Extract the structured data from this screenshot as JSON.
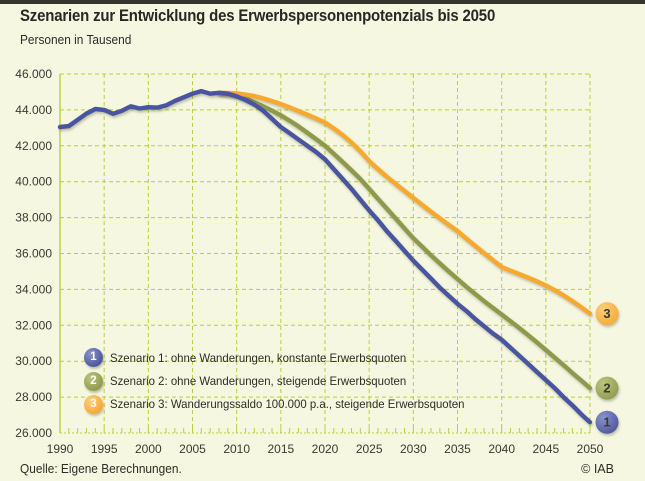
{
  "header": {
    "title": "Szenarien zur Entwicklung des Erwerbspersonenpotenzials bis 2050",
    "subtitle": "Personen in Tausend"
  },
  "footer": {
    "source": "Quelle: Eigene Berechnungen.",
    "credit": "© IAB"
  },
  "colors": {
    "background": "#f5f7e0",
    "grid": "#b9cf3d",
    "top_bar": "#35352c",
    "text": "#2d2d28"
  },
  "chart_data": {
    "type": "line",
    "title": "Szenarien zur Entwicklung des Erwerbspersonenpotenzials bis 2050",
    "ylabel": "Personen in Tausend",
    "xlabel": "",
    "x_range": [
      1990,
      2050
    ],
    "y_range": [
      26000,
      46000
    ],
    "grid": true,
    "legend_position": "inside-bottom-left",
    "x_ticks": [
      1990,
      1995,
      2000,
      2005,
      2010,
      2015,
      2020,
      2025,
      2030,
      2035,
      2040,
      2045,
      2050
    ],
    "y_ticks": [
      {
        "value": 26000,
        "label": "26.000"
      },
      {
        "value": 28000,
        "label": "28.000"
      },
      {
        "value": 30000,
        "label": "30.000"
      },
      {
        "value": 32000,
        "label": "32.000"
      },
      {
        "value": 34000,
        "label": "34.000"
      },
      {
        "value": 36000,
        "label": "36.000"
      },
      {
        "value": 38000,
        "label": "38.000"
      },
      {
        "value": 40000,
        "label": "40.000"
      },
      {
        "value": 42000,
        "label": "42.000"
      },
      {
        "value": 44000,
        "label": "44.000"
      },
      {
        "value": 46000,
        "label": "46.000"
      }
    ],
    "series": [
      {
        "marker": "1",
        "name": "Szenario 1: ohne Wanderungen, konstante Erwerbsquoten",
        "color": "#4a549e",
        "color_light": "#8a93c8",
        "end_value_2050": 26600,
        "points": [
          [
            1990,
            43050
          ],
          [
            1991,
            43100
          ],
          [
            1992,
            43450
          ],
          [
            1993,
            43800
          ],
          [
            1994,
            44050
          ],
          [
            1995,
            44000
          ],
          [
            1996,
            43780
          ],
          [
            1997,
            43950
          ],
          [
            1998,
            44200
          ],
          [
            1999,
            44080
          ],
          [
            2000,
            44150
          ],
          [
            2001,
            44130
          ],
          [
            2002,
            44250
          ],
          [
            2003,
            44500
          ],
          [
            2004,
            44700
          ],
          [
            2005,
            44900
          ],
          [
            2006,
            45050
          ],
          [
            2007,
            44900
          ],
          [
            2008,
            44950
          ],
          [
            2009,
            44900
          ],
          [
            2010,
            44750
          ],
          [
            2011,
            44550
          ],
          [
            2012,
            44300
          ],
          [
            2013,
            43950
          ],
          [
            2014,
            43500
          ],
          [
            2015,
            43050
          ],
          [
            2016,
            42700
          ],
          [
            2017,
            42350
          ],
          [
            2018,
            42000
          ],
          [
            2019,
            41650
          ],
          [
            2020,
            41250
          ],
          [
            2021,
            40700
          ],
          [
            2022,
            40150
          ],
          [
            2023,
            39600
          ],
          [
            2024,
            39000
          ],
          [
            2025,
            38400
          ],
          [
            2026,
            37850
          ],
          [
            2027,
            37250
          ],
          [
            2028,
            36700
          ],
          [
            2029,
            36150
          ],
          [
            2030,
            35600
          ],
          [
            2031,
            35100
          ],
          [
            2032,
            34600
          ],
          [
            2033,
            34100
          ],
          [
            2034,
            33650
          ],
          [
            2035,
            33200
          ],
          [
            2036,
            32800
          ],
          [
            2037,
            32350
          ],
          [
            2038,
            31950
          ],
          [
            2039,
            31550
          ],
          [
            2040,
            31200
          ],
          [
            2041,
            30750
          ],
          [
            2042,
            30300
          ],
          [
            2043,
            29850
          ],
          [
            2044,
            29400
          ],
          [
            2045,
            28950
          ],
          [
            2046,
            28500
          ],
          [
            2047,
            28000
          ],
          [
            2048,
            27550
          ],
          [
            2049,
            27050
          ],
          [
            2050,
            26600
          ]
        ]
      },
      {
        "marker": "2",
        "name": "Szenario 2: ohne Wanderungen, steigende Erwerbsquoten",
        "color": "#8e9a4c",
        "color_light": "#bcc47e",
        "end_value_2050": 28500,
        "points": [
          [
            2008,
            44950
          ],
          [
            2009,
            44900
          ],
          [
            2010,
            44820
          ],
          [
            2011,
            44650
          ],
          [
            2012,
            44430
          ],
          [
            2013,
            44200
          ],
          [
            2014,
            43960
          ],
          [
            2015,
            43700
          ],
          [
            2016,
            43400
          ],
          [
            2017,
            43080
          ],
          [
            2018,
            42730
          ],
          [
            2019,
            42370
          ],
          [
            2020,
            42000
          ],
          [
            2021,
            41560
          ],
          [
            2022,
            41100
          ],
          [
            2023,
            40630
          ],
          [
            2024,
            40150
          ],
          [
            2025,
            39600
          ],
          [
            2026,
            39050
          ],
          [
            2027,
            38500
          ],
          [
            2028,
            37950
          ],
          [
            2029,
            37400
          ],
          [
            2030,
            36850
          ],
          [
            2031,
            36380
          ],
          [
            2032,
            35900
          ],
          [
            2033,
            35450
          ],
          [
            2034,
            35000
          ],
          [
            2035,
            34580
          ],
          [
            2036,
            34150
          ],
          [
            2037,
            33750
          ],
          [
            2038,
            33350
          ],
          [
            2039,
            32980
          ],
          [
            2040,
            32600
          ],
          [
            2041,
            32230
          ],
          [
            2042,
            31850
          ],
          [
            2043,
            31450
          ],
          [
            2044,
            31050
          ],
          [
            2045,
            30630
          ],
          [
            2046,
            30200
          ],
          [
            2047,
            29780
          ],
          [
            2048,
            29350
          ],
          [
            2049,
            28930
          ],
          [
            2050,
            28500
          ]
        ]
      },
      {
        "marker": "3",
        "name": "Szenario 3: Wanderungssaldo 100.000 p.a., steigende Erwerbsquoten",
        "color": "#f7a82d",
        "color_light": "#fbcf7f",
        "end_value_2050": 32650,
        "points": [
          [
            2008,
            44950
          ],
          [
            2009,
            44940
          ],
          [
            2010,
            44920
          ],
          [
            2011,
            44860
          ],
          [
            2012,
            44770
          ],
          [
            2013,
            44640
          ],
          [
            2014,
            44490
          ],
          [
            2015,
            44330
          ],
          [
            2016,
            44140
          ],
          [
            2017,
            43940
          ],
          [
            2018,
            43730
          ],
          [
            2019,
            43520
          ],
          [
            2020,
            43300
          ],
          [
            2021,
            42970
          ],
          [
            2022,
            42600
          ],
          [
            2023,
            42180
          ],
          [
            2024,
            41700
          ],
          [
            2025,
            41150
          ],
          [
            2026,
            40700
          ],
          [
            2027,
            40280
          ],
          [
            2028,
            39880
          ],
          [
            2029,
            39490
          ],
          [
            2030,
            39100
          ],
          [
            2031,
            38710
          ],
          [
            2032,
            38330
          ],
          [
            2033,
            37960
          ],
          [
            2034,
            37600
          ],
          [
            2035,
            37250
          ],
          [
            2036,
            36830
          ],
          [
            2037,
            36430
          ],
          [
            2038,
            36030
          ],
          [
            2039,
            35640
          ],
          [
            2040,
            35250
          ],
          [
            2041,
            35050
          ],
          [
            2042,
            34850
          ],
          [
            2043,
            34650
          ],
          [
            2044,
            34450
          ],
          [
            2045,
            34220
          ],
          [
            2046,
            33960
          ],
          [
            2047,
            33670
          ],
          [
            2048,
            33350
          ],
          [
            2049,
            33010
          ],
          [
            2050,
            32650
          ]
        ]
      }
    ]
  }
}
